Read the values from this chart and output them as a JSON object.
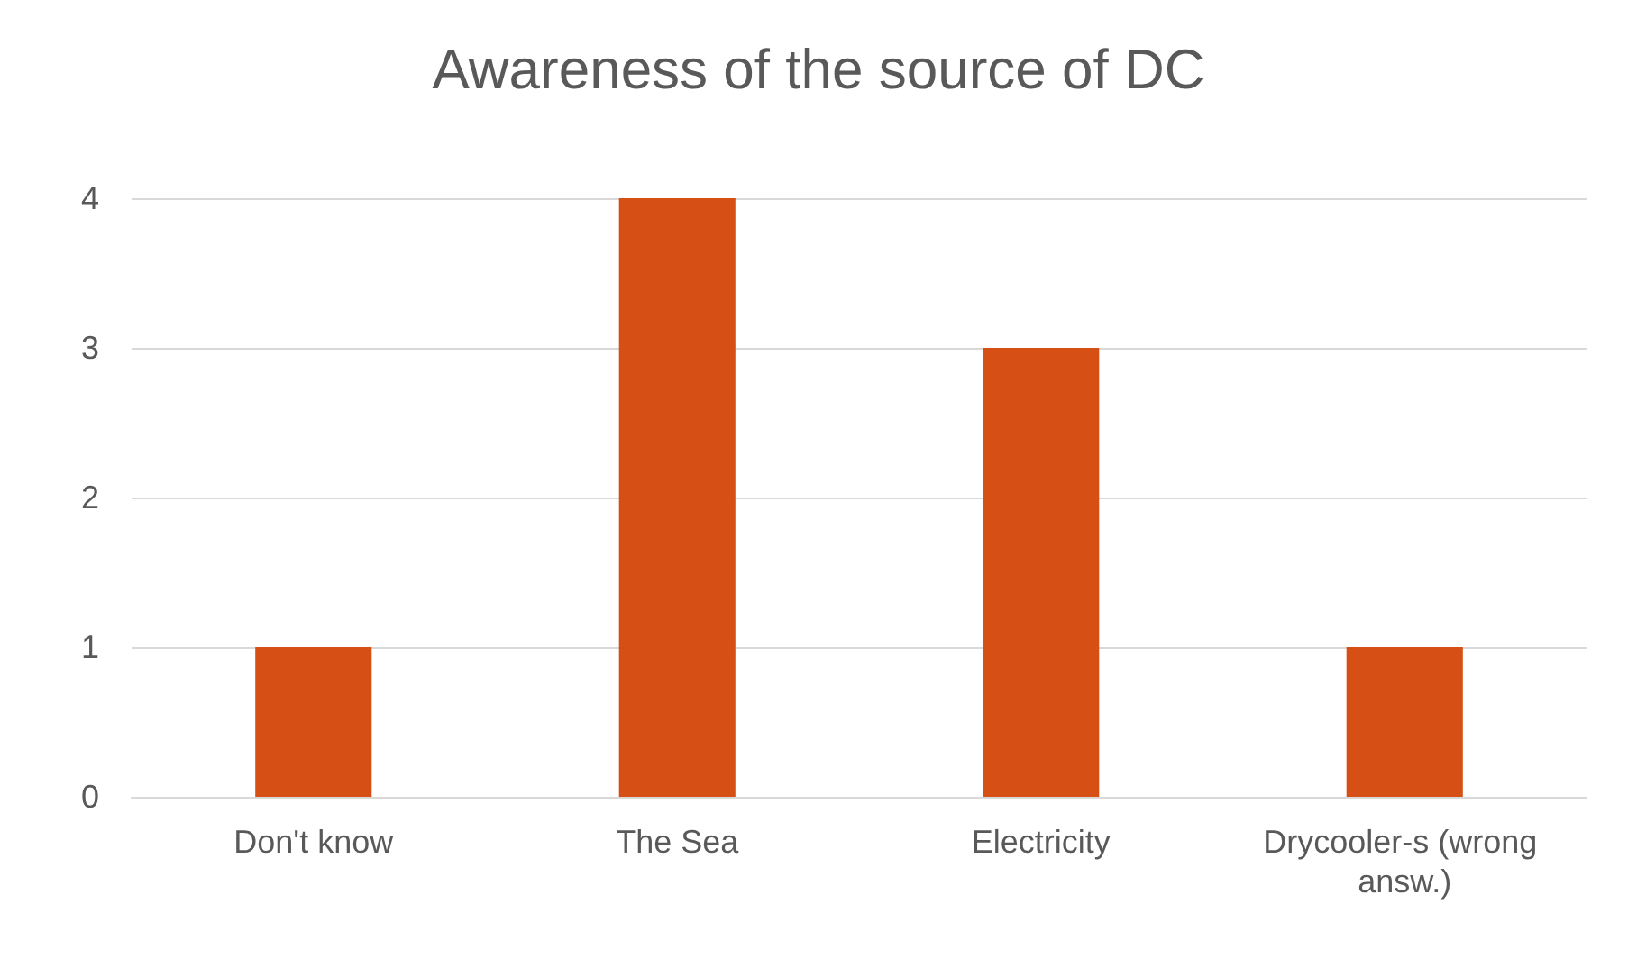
{
  "chart_data": {
    "type": "bar",
    "title": "Awareness of the source of DC",
    "categories": [
      "Don't know",
      "The Sea",
      "Electricity",
      "Drycooler-s (wrong answ.)"
    ],
    "values": [
      1,
      4,
      3,
      1
    ],
    "color": "#d65016",
    "ylim": [
      0,
      4
    ],
    "yticks": [
      0,
      1,
      2,
      3,
      4
    ],
    "grid": "y"
  }
}
